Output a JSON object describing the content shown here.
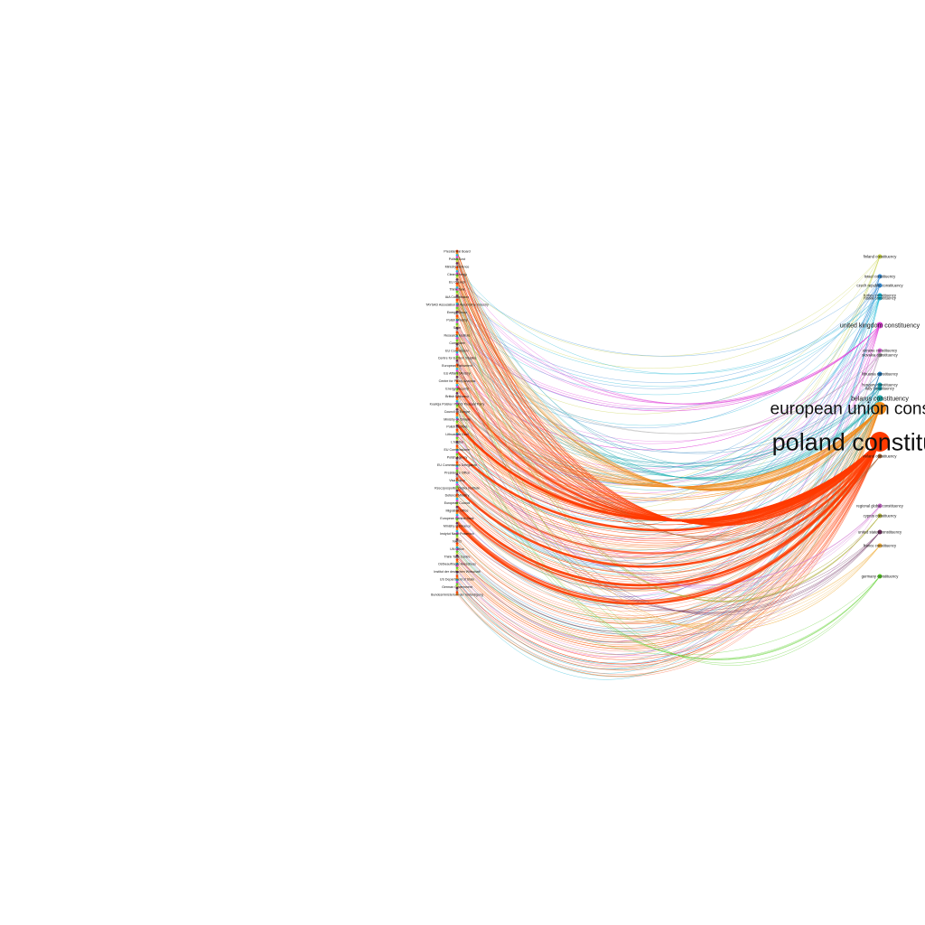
{
  "graph": {
    "left_labels": [
      "Presidential Board",
      "Polish Govt",
      "Ministry Defence",
      "Clean Energy",
      "EU Council",
      "Think Tank",
      "IAA Commission",
      "TAYSAD Association of Automotive Industry",
      "Energy Group",
      "Polish Ministry",
      "Sejm",
      "Research Institute",
      "Committee",
      "EU Commission",
      "Centre for Eastern Studies",
      "European Parliament",
      "EU Affairs Ministry",
      "Centre for Policy Analysis",
      "Energy Security",
      "British Embassy",
      "Koalicja Polska / Polish Peasant Party",
      "Council of Europe",
      "Ministry of Climate",
      "Polish Institute",
      "Lithuanian Govt",
      "L'Institut",
      "EU Commissioner",
      "Polish Agency",
      "EU Commission Delegation",
      "President's Office",
      "Visa Policy",
      "Rzeczpospolita Polska Institute",
      "Defence Ministry",
      "European Council",
      "Migration Office",
      "European Central Bank",
      "Ministry of Finance",
      "Instytut Nauk Prawnych",
      "NATO",
      "UN Office",
      "Think Tank Centre",
      "Ostbeauftragte Ausschuss",
      "Institut der deutschen Wirtschaft",
      "US Department of State",
      "German Government",
      "Bundesministerium der Verteidigung"
    ],
    "right_nodes": [
      {
        "label": "finland constituency",
        "color": "#c8d24a",
        "size": "small"
      },
      {
        "label": "israel constituency",
        "color": "#3a8fd6",
        "size": "small"
      },
      {
        "label": "czech republic constituency",
        "color": "#3a8fd6",
        "size": "small"
      },
      {
        "label": "turkey constituency",
        "color": "#1fb8d6",
        "size": "small"
      },
      {
        "label": "russia constituency",
        "color": "#1fb8d6",
        "size": "small"
      },
      {
        "label": "united kingdom constituency",
        "color": "#e040d8",
        "size": "medium"
      },
      {
        "label": "ukraine constituency",
        "color": "#e070e0",
        "size": "small"
      },
      {
        "label": "slovakia constituency",
        "color": "#a0a0a0",
        "size": "small"
      },
      {
        "label": "lithuania constituency",
        "color": "#2a7fc0",
        "size": "small"
      },
      {
        "label": "hungary constituency",
        "color": "#1aa0b0",
        "size": "small"
      },
      {
        "label": "italy constituency",
        "color": "#1aa0b0",
        "size": "small"
      },
      {
        "label": "belarus constituency",
        "color": "#20b0b0",
        "size": "medium"
      },
      {
        "label": "european union constituency",
        "color": "#f08a1a",
        "size": "large"
      },
      {
        "label": "poland constituency",
        "color": "#ff3a00",
        "size": "xlarge"
      },
      {
        "label": "ireland constituency",
        "color": "#a06030",
        "size": "small"
      },
      {
        "label": "regional global constituency",
        "color": "#d070d0",
        "size": "small"
      },
      {
        "label": "cyprus constituency",
        "color": "#b0b040",
        "size": "small"
      },
      {
        "label": "united states constituency",
        "color": "#6a2a5a",
        "size": "small"
      },
      {
        "label": "france constituency",
        "color": "#f0b040",
        "size": "small"
      },
      {
        "label": "germany constituency",
        "color": "#5ad02a",
        "size": "small"
      }
    ],
    "palette": [
      "#ff3a00",
      "#f08a1a",
      "#1fb8d6",
      "#e040d8",
      "#5ad02a",
      "#c8d24a",
      "#6a2a5a",
      "#a0a0a0"
    ]
  }
}
